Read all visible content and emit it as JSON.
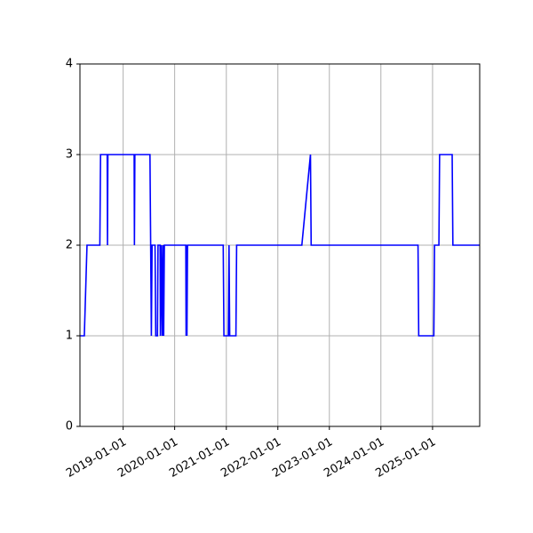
{
  "chart_data": {
    "type": "line",
    "title": "",
    "xlabel": "",
    "ylabel": "",
    "grid": true,
    "line_color": "#0000ff",
    "grid_color": "#b0b0b0",
    "xlim": [
      "2018-03-01",
      "2025-12-01"
    ],
    "ylim": [
      0,
      4
    ],
    "x_ticks": [
      "2019-01-01",
      "2020-01-01",
      "2021-01-01",
      "2022-01-01",
      "2023-01-01",
      "2024-01-01",
      "2025-01-01"
    ],
    "y_ticks": [
      0,
      1,
      2,
      3,
      4
    ],
    "series": [
      {
        "name": "",
        "points": [
          [
            "2018-03-01",
            1
          ],
          [
            "2018-04-01",
            1
          ],
          [
            "2018-04-20",
            2
          ],
          [
            "2018-07-20",
            2
          ],
          [
            "2018-07-25",
            3
          ],
          [
            "2018-09-10",
            3
          ],
          [
            "2018-09-12",
            2
          ],
          [
            "2018-09-15",
            3
          ],
          [
            "2019-03-20",
            3
          ],
          [
            "2019-03-22",
            2
          ],
          [
            "2019-03-25",
            3
          ],
          [
            "2019-07-10",
            3
          ],
          [
            "2019-07-20",
            1
          ],
          [
            "2019-07-25",
            2
          ],
          [
            "2019-08-15",
            2
          ],
          [
            "2019-08-20",
            1
          ],
          [
            "2019-09-01",
            1
          ],
          [
            "2019-09-05",
            2
          ],
          [
            "2019-09-20",
            2
          ],
          [
            "2019-09-22",
            1
          ],
          [
            "2019-09-28",
            2
          ],
          [
            "2019-10-05",
            1
          ],
          [
            "2019-10-10",
            2
          ],
          [
            "2019-10-15",
            1
          ],
          [
            "2019-10-20",
            2
          ],
          [
            "2020-03-20",
            2
          ],
          [
            "2020-03-22",
            1
          ],
          [
            "2020-03-25",
            2
          ],
          [
            "2020-03-28",
            1
          ],
          [
            "2020-04-01",
            2
          ],
          [
            "2020-12-10",
            2
          ],
          [
            "2020-12-15",
            1
          ],
          [
            "2021-01-15",
            1
          ],
          [
            "2021-01-20",
            2
          ],
          [
            "2021-01-25",
            1
          ],
          [
            "2021-03-10",
            1
          ],
          [
            "2021-03-15",
            2
          ],
          [
            "2022-06-20",
            2
          ],
          [
            "2022-08-20",
            3
          ],
          [
            "2022-08-25",
            2
          ],
          [
            "2024-09-20",
            2
          ],
          [
            "2024-09-25",
            1
          ],
          [
            "2025-01-10",
            1
          ],
          [
            "2025-01-15",
            2
          ],
          [
            "2025-02-15",
            2
          ],
          [
            "2025-02-20",
            3
          ],
          [
            "2025-05-20",
            3
          ],
          [
            "2025-05-25",
            2
          ],
          [
            "2025-12-01",
            2
          ]
        ]
      }
    ]
  }
}
